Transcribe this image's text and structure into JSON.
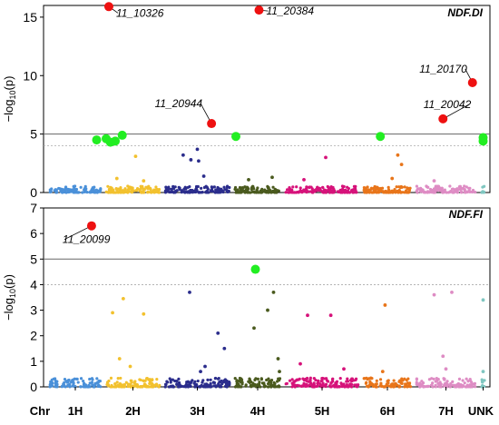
{
  "chart_data": {
    "type": "scatter",
    "subtype": "manhattan",
    "x_axis": {
      "label": "Chr",
      "chromosomes": [
        "1H",
        "2H",
        "3H",
        "4H",
        "5H",
        "6H",
        "7H",
        "UNK"
      ],
      "chromosome_colors": {
        "1H": "#4a90d9",
        "2H": "#f2c12e",
        "3H": "#2b2d8c",
        "4H": "#4a5a1e",
        "5H": "#d6127a",
        "6H": "#e8751a",
        "7H": "#de8cc4",
        "UNK": "#7fc6c0"
      },
      "chromosome_position_range": [
        0,
        1
      ]
    },
    "panels": [
      {
        "id": "ndf-di",
        "title": "NDF.DI",
        "ylabel": "-log10(p)",
        "ylim": [
          0,
          16
        ],
        "yticks": [
          0,
          5,
          10,
          15
        ],
        "threshold": 5,
        "suggestive_threshold": 4,
        "highlight_colors": {
          "labeled": "#ee1111",
          "unlabeled": "#22ee22"
        },
        "labeled_hits": [
          {
            "label": "11_10326",
            "chrom": "2H",
            "pos": 0.05,
            "y": 15.9
          },
          {
            "label": "11_20384",
            "chrom": "4H",
            "pos": 0.53,
            "y": 15.6
          },
          {
            "label": "11_20170",
            "chrom": "7H",
            "pos": 0.95,
            "y": 9.4
          },
          {
            "label": "11_20944",
            "chrom": "3H",
            "pos": 0.72,
            "y": 5.9
          },
          {
            "label": "11_20042",
            "chrom": "7H",
            "pos": 0.45,
            "y": 6.3
          }
        ],
        "significant_points": [
          {
            "chrom": "1H",
            "pos": 0.92,
            "y": 4.5
          },
          {
            "chrom": "2H",
            "pos": 0.0,
            "y": 4.6
          },
          {
            "chrom": "2H",
            "pos": 0.08,
            "y": 4.3
          },
          {
            "chrom": "2H",
            "pos": 0.17,
            "y": 4.4
          },
          {
            "chrom": "2H",
            "pos": 0.3,
            "y": 4.9
          },
          {
            "chrom": "4H",
            "pos": 0.02,
            "y": 4.8
          },
          {
            "chrom": "6H",
            "pos": 0.35,
            "y": 4.8
          },
          {
            "chrom": "UNK",
            "pos": 0.5,
            "y": 4.7
          },
          {
            "chrom": "UNK",
            "pos": 0.5,
            "y": 4.4
          }
        ],
        "points": [
          {
            "chrom": "2H",
            "pos": 0.2,
            "y": 1.2
          },
          {
            "chrom": "2H",
            "pos": 0.55,
            "y": 3.1
          },
          {
            "chrom": "2H",
            "pos": 0.7,
            "y": 1.0
          },
          {
            "chrom": "3H",
            "pos": 0.28,
            "y": 3.2
          },
          {
            "chrom": "3H",
            "pos": 0.4,
            "y": 2.8
          },
          {
            "chrom": "3H",
            "pos": 0.5,
            "y": 3.7
          },
          {
            "chrom": "3H",
            "pos": 0.52,
            "y": 2.7
          },
          {
            "chrom": "3H",
            "pos": 0.6,
            "y": 1.4
          },
          {
            "chrom": "4H",
            "pos": 0.3,
            "y": 1.1
          },
          {
            "chrom": "4H",
            "pos": 0.82,
            "y": 1.3
          },
          {
            "chrom": "5H",
            "pos": 0.55,
            "y": 3.0
          },
          {
            "chrom": "5H",
            "pos": 0.25,
            "y": 1.1
          },
          {
            "chrom": "6H",
            "pos": 0.72,
            "y": 3.2
          },
          {
            "chrom": "6H",
            "pos": 0.8,
            "y": 2.4
          },
          {
            "chrom": "6H",
            "pos": 0.6,
            "y": 1.2
          },
          {
            "chrom": "7H",
            "pos": 0.3,
            "y": 1.0
          }
        ]
      },
      {
        "id": "ndf-fi",
        "title": "NDF.FI",
        "ylabel": "-log10(p)",
        "ylim": [
          0,
          7
        ],
        "yticks": [
          0,
          1,
          2,
          3,
          4,
          5,
          6,
          7
        ],
        "threshold": 5,
        "suggestive_threshold": 4,
        "highlight_colors": {
          "labeled": "#ee1111",
          "unlabeled": "#22ee22"
        },
        "labeled_hits": [
          {
            "label": "11_20099",
            "chrom": "1H",
            "pos": 0.82,
            "y": 6.3
          }
        ],
        "significant_points": [
          {
            "chrom": "4H",
            "pos": 0.45,
            "y": 4.6
          }
        ],
        "points": [
          {
            "chrom": "2H",
            "pos": 0.12,
            "y": 2.9
          },
          {
            "chrom": "2H",
            "pos": 0.32,
            "y": 3.45
          },
          {
            "chrom": "2H",
            "pos": 0.7,
            "y": 2.85
          },
          {
            "chrom": "2H",
            "pos": 0.25,
            "y": 1.1
          },
          {
            "chrom": "2H",
            "pos": 0.45,
            "y": 0.8
          },
          {
            "chrom": "3H",
            "pos": 0.38,
            "y": 3.7
          },
          {
            "chrom": "3H",
            "pos": 0.62,
            "y": 0.8
          },
          {
            "chrom": "3H",
            "pos": 0.82,
            "y": 2.1
          },
          {
            "chrom": "3H",
            "pos": 0.92,
            "y": 1.5
          },
          {
            "chrom": "3H",
            "pos": 0.55,
            "y": 0.6
          },
          {
            "chrom": "4H",
            "pos": 0.42,
            "y": 2.3
          },
          {
            "chrom": "4H",
            "pos": 0.72,
            "y": 3.0
          },
          {
            "chrom": "4H",
            "pos": 0.85,
            "y": 3.7
          },
          {
            "chrom": "4H",
            "pos": 0.95,
            "y": 1.1
          },
          {
            "chrom": "4H",
            "pos": 0.98,
            "y": 0.6
          },
          {
            "chrom": "5H",
            "pos": 0.3,
            "y": 2.8
          },
          {
            "chrom": "5H",
            "pos": 0.62,
            "y": 2.8
          },
          {
            "chrom": "5H",
            "pos": 0.2,
            "y": 0.9
          },
          {
            "chrom": "5H",
            "pos": 0.8,
            "y": 0.7
          },
          {
            "chrom": "6H",
            "pos": 0.45,
            "y": 3.2
          },
          {
            "chrom": "6H",
            "pos": 0.4,
            "y": 0.6
          },
          {
            "chrom": "7H",
            "pos": 0.3,
            "y": 3.6
          },
          {
            "chrom": "7H",
            "pos": 0.6,
            "y": 3.7
          },
          {
            "chrom": "7H",
            "pos": 0.45,
            "y": 1.2
          },
          {
            "chrom": "7H",
            "pos": 0.5,
            "y": 0.7
          },
          {
            "chrom": "UNK",
            "pos": 0.5,
            "y": 3.4
          },
          {
            "chrom": "UNK",
            "pos": 0.5,
            "y": 0.6
          }
        ]
      }
    ]
  }
}
